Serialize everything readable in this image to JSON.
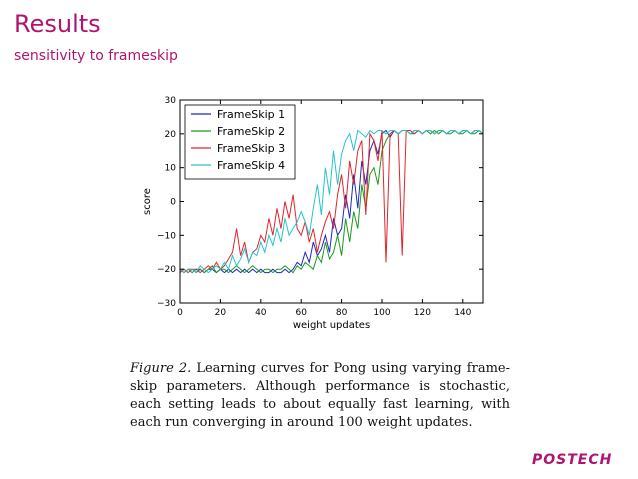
{
  "slide": {
    "title": "Results",
    "subtitle": "sensitivity to frameskip",
    "logo_text": "POSTECH"
  },
  "caption": {
    "label": "Figure 2.",
    "text": "Learning curves for Pong using varying frame-skip parameters. Although performance is stochastic, each setting leads to about equally fast learning, with each run converging in around 100 weight updates."
  },
  "colors": {
    "accent": "#b0146e",
    "series": [
      "#1f28c0",
      "#1a9a1a",
      "#e0252b",
      "#26c4cc"
    ]
  },
  "chart_data": {
    "type": "line",
    "title": "",
    "xlabel": "weight updates",
    "ylabel": "score",
    "xlim": [
      0,
      150
    ],
    "ylim": [
      -30,
      30
    ],
    "xticks": [
      0,
      20,
      40,
      60,
      80,
      100,
      120,
      140
    ],
    "yticks": [
      -30,
      -20,
      -10,
      0,
      10,
      20,
      30
    ],
    "grid": false,
    "legend": "top-left",
    "x": [
      0,
      2,
      4,
      6,
      8,
      10,
      12,
      14,
      16,
      18,
      20,
      22,
      24,
      26,
      28,
      30,
      32,
      34,
      36,
      38,
      40,
      42,
      44,
      46,
      48,
      50,
      52,
      54,
      56,
      58,
      60,
      62,
      64,
      66,
      68,
      70,
      72,
      74,
      76,
      78,
      80,
      82,
      84,
      86,
      88,
      90,
      92,
      94,
      96,
      98,
      100,
      102,
      104,
      106,
      108,
      110,
      112,
      114,
      116,
      118,
      120,
      122,
      124,
      126,
      128,
      130,
      132,
      134,
      136,
      138,
      140,
      142,
      144,
      146,
      148,
      150
    ],
    "series": [
      {
        "name": "FrameSkip 1",
        "color": "#1f28c0",
        "values": [
          -20,
          -21,
          -20,
          -20,
          -21,
          -20,
          -21,
          -20,
          -20,
          -21,
          -20,
          -21,
          -20,
          -21,
          -20,
          -21,
          -20,
          -21,
          -20,
          -21,
          -20,
          -21,
          -21,
          -20,
          -21,
          -21,
          -20,
          -21,
          -20,
          -18,
          -19,
          -15,
          -18,
          -12,
          -16,
          -14,
          -10,
          -15,
          -5,
          -10,
          -8,
          2,
          -5,
          8,
          -2,
          12,
          5,
          15,
          18,
          14,
          20,
          21,
          19,
          21,
          20,
          21,
          21,
          20,
          21,
          21,
          20,
          21,
          21,
          20,
          21,
          21,
          20,
          21,
          21,
          20,
          21,
          21,
          20,
          21,
          21,
          20
        ]
      },
      {
        "name": "FrameSkip 2",
        "color": "#1a9a1a",
        "values": [
          -20,
          -21,
          -20,
          -21,
          -20,
          -20,
          -21,
          -20,
          -19,
          -21,
          -20,
          -20,
          -21,
          -20,
          -19,
          -20,
          -21,
          -20,
          -19,
          -20,
          -21,
          -20,
          -20,
          -21,
          -20,
          -20,
          -19,
          -20,
          -21,
          -19,
          -20,
          -18,
          -19,
          -20,
          -16,
          -18,
          -12,
          -17,
          -15,
          -10,
          -16,
          -5,
          -12,
          -3,
          -8,
          5,
          -2,
          8,
          10,
          5,
          15,
          18,
          20,
          21,
          20,
          21,
          21,
          20,
          20,
          21,
          20,
          21,
          20,
          21,
          20,
          21,
          20,
          20,
          21,
          20,
          20,
          21,
          20,
          20,
          21,
          20
        ]
      },
      {
        "name": "FrameSkip 3",
        "color": "#e0252b",
        "values": [
          -21,
          -20,
          -21,
          -20,
          -20,
          -21,
          -20,
          -19,
          -20,
          -18,
          -20,
          -19,
          -17,
          -15,
          -8,
          -16,
          -12,
          -18,
          -15,
          -14,
          -10,
          -12,
          -5,
          -10,
          -2,
          -8,
          0,
          -5,
          2,
          -8,
          -10,
          -6,
          -12,
          -8,
          -15,
          -10,
          -6,
          -3,
          -8,
          2,
          8,
          -2,
          12,
          5,
          15,
          18,
          -4,
          20,
          18,
          12,
          21,
          -18,
          20,
          21,
          20,
          -16,
          21,
          21,
          20,
          21,
          20,
          21,
          21,
          20,
          21,
          21,
          20,
          21,
          21,
          20,
          21,
          21,
          20,
          21,
          21,
          20
        ]
      },
      {
        "name": "FrameSkip 4",
        "color": "#26c4cc",
        "values": [
          -20,
          -21,
          -20,
          -20,
          -21,
          -19,
          -20,
          -21,
          -20,
          -19,
          -20,
          -18,
          -20,
          -16,
          -19,
          -17,
          -14,
          -18,
          -15,
          -16,
          -12,
          -15,
          -10,
          -13,
          -8,
          -12,
          -5,
          -10,
          -8,
          -6,
          -3,
          -6,
          -10,
          -2,
          5,
          -4,
          10,
          2,
          15,
          5,
          14,
          18,
          20,
          15,
          21,
          20,
          19,
          21,
          20,
          21,
          21,
          20,
          21,
          21,
          20,
          21,
          21,
          20,
          21,
          21,
          20,
          21,
          21,
          20,
          21,
          21,
          20,
          21,
          21,
          20,
          21,
          21,
          20,
          21,
          21,
          20
        ]
      }
    ]
  }
}
